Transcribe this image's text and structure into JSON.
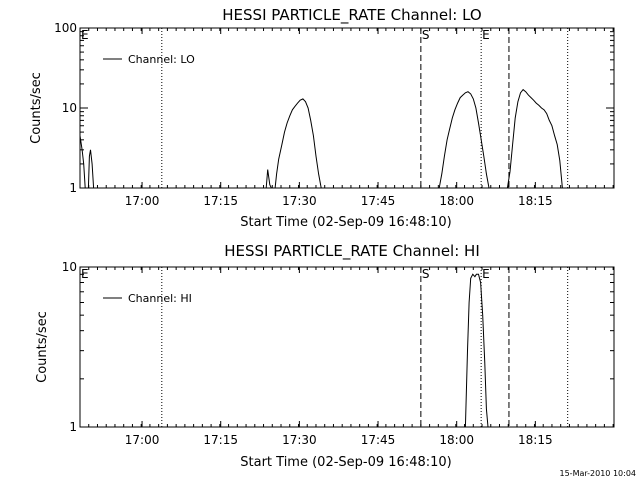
{
  "chart_data": [
    {
      "type": "line",
      "title": "HESSI PARTICLE_RATE Channel: LO",
      "xlabel": "Start Time (02-Sep-09 16:48:10)",
      "ylabel": "Counts/sec",
      "yscale": "log",
      "ylim": [
        1,
        100
      ],
      "xlim_minutes": [
        0,
        101.833
      ],
      "x_ticks": [
        {
          "t": 11.833,
          "label": "17:00"
        },
        {
          "t": 26.833,
          "label": "17:15"
        },
        {
          "t": 41.833,
          "label": "17:30"
        },
        {
          "t": 56.833,
          "label": "17:45"
        },
        {
          "t": 71.833,
          "label": "18:00"
        },
        {
          "t": 86.833,
          "label": "18:15"
        }
      ],
      "y_ticks": [
        {
          "v": 1,
          "label": "1"
        },
        {
          "v": 10,
          "label": "10"
        },
        {
          "v": 100,
          "label": "100"
        }
      ],
      "legend": "Channel: LO",
      "legend_position": "top-left",
      "markers": [
        {
          "t": 0.0,
          "style": "dotted",
          "label": "E"
        },
        {
          "t": 15.6,
          "style": "dotted",
          "label": ""
        },
        {
          "t": 65.0,
          "style": "dashed",
          "label": "S"
        },
        {
          "t": 76.5,
          "style": "dotted",
          "label": "E"
        },
        {
          "t": 81.8,
          "style": "dashed",
          "label": ""
        },
        {
          "t": 93.0,
          "style": "dotted",
          "label": ""
        }
      ],
      "series": [
        {
          "name": "Channel: LO",
          "points": [
            [
              0.0,
              4.5
            ],
            [
              0.4,
              3.0
            ],
            [
              0.7,
              2.0
            ],
            [
              1.0,
              1.0
            ],
            [
              1.6,
              1.0
            ],
            [
              1.8,
              2.5
            ],
            [
              2.0,
              3.0
            ],
            [
              2.3,
              2.0
            ],
            [
              2.6,
              1.0
            ],
            [
              35.5,
              1.0
            ],
            [
              35.8,
              1.7
            ],
            [
              36.2,
              1.1
            ],
            [
              36.5,
              1.0
            ],
            [
              37.2,
              1.0
            ],
            [
              37.5,
              1.5
            ],
            [
              37.9,
              2.3
            ],
            [
              38.5,
              3.5
            ],
            [
              39.0,
              5.0
            ],
            [
              39.5,
              6.5
            ],
            [
              40.0,
              8.0
            ],
            [
              40.5,
              9.5
            ],
            [
              41.0,
              10.5
            ],
            [
              41.5,
              11.5
            ],
            [
              42.0,
              12.5
            ],
            [
              42.5,
              13.0
            ],
            [
              43.0,
              12.0
            ],
            [
              43.5,
              10.0
            ],
            [
              44.0,
              7.0
            ],
            [
              44.5,
              4.5
            ],
            [
              45.0,
              2.5
            ],
            [
              45.5,
              1.5
            ],
            [
              46.0,
              1.0
            ],
            [
              68.5,
              1.0
            ],
            [
              69.0,
              1.5
            ],
            [
              69.5,
              2.5
            ],
            [
              70.0,
              4.0
            ],
            [
              70.5,
              5.5
            ],
            [
              71.0,
              7.5
            ],
            [
              71.5,
              9.5
            ],
            [
              72.0,
              11.5
            ],
            [
              72.5,
              13.5
            ],
            [
              73.0,
              14.5
            ],
            [
              73.5,
              15.5
            ],
            [
              74.0,
              16.0
            ],
            [
              74.5,
              15.0
            ],
            [
              75.0,
              13.0
            ],
            [
              75.5,
              10.0
            ],
            [
              76.0,
              6.5
            ],
            [
              76.5,
              4.0
            ],
            [
              77.0,
              2.5
            ],
            [
              77.5,
              1.5
            ],
            [
              78.0,
              1.0
            ],
            [
              81.5,
              1.0
            ],
            [
              82.0,
              1.6
            ],
            [
              82.5,
              3.5
            ],
            [
              83.0,
              7.5
            ],
            [
              83.5,
              12.0
            ],
            [
              84.0,
              15.5
            ],
            [
              84.5,
              17.0
            ],
            [
              85.0,
              16.0
            ],
            [
              85.5,
              14.5
            ],
            [
              86.0,
              13.5
            ],
            [
              86.5,
              12.5
            ],
            [
              87.0,
              11.5
            ],
            [
              87.5,
              10.8
            ],
            [
              88.0,
              10.0
            ],
            [
              88.5,
              9.5
            ],
            [
              89.0,
              8.5
            ],
            [
              89.5,
              7.0
            ],
            [
              90.0,
              6.0
            ],
            [
              90.5,
              4.5
            ],
            [
              91.0,
              3.5
            ],
            [
              91.5,
              2.2
            ],
            [
              92.0,
              1.0
            ],
            [
              101.833,
              1.0
            ]
          ]
        }
      ]
    },
    {
      "type": "line",
      "title": "HESSI PARTICLE_RATE Channel: HI",
      "xlabel": "Start Time (02-Sep-09 16:48:10)",
      "ylabel": "Counts/sec",
      "yscale": "log",
      "ylim": [
        1,
        10
      ],
      "xlim_minutes": [
        0,
        101.833
      ],
      "x_ticks": [
        {
          "t": 11.833,
          "label": "17:00"
        },
        {
          "t": 26.833,
          "label": "17:15"
        },
        {
          "t": 41.833,
          "label": "17:30"
        },
        {
          "t": 56.833,
          "label": "17:45"
        },
        {
          "t": 71.833,
          "label": "18:00"
        },
        {
          "t": 86.833,
          "label": "18:15"
        }
      ],
      "y_ticks": [
        {
          "v": 1,
          "label": "1"
        },
        {
          "v": 10,
          "label": "10"
        }
      ],
      "legend": "Channel: HI",
      "legend_position": "top-left",
      "markers": [
        {
          "t": 0.0,
          "style": "dotted",
          "label": "E"
        },
        {
          "t": 15.6,
          "style": "dotted",
          "label": ""
        },
        {
          "t": 65.0,
          "style": "dashed",
          "label": "S"
        },
        {
          "t": 76.5,
          "style": "dotted",
          "label": "E"
        },
        {
          "t": 81.8,
          "style": "dashed",
          "label": ""
        },
        {
          "t": 93.0,
          "style": "dotted",
          "label": ""
        }
      ],
      "series": [
        {
          "name": "Channel: HI",
          "points": [
            [
              0.0,
              1.0
            ],
            [
              73.5,
              1.0
            ],
            [
              73.9,
              3.0
            ],
            [
              74.2,
              6.0
            ],
            [
              74.5,
              8.5
            ],
            [
              74.9,
              9.0
            ],
            [
              75.3,
              8.7
            ],
            [
              75.6,
              9.0
            ],
            [
              76.0,
              9.0
            ],
            [
              76.4,
              8.0
            ],
            [
              76.8,
              5.0
            ],
            [
              77.2,
              2.5
            ],
            [
              77.5,
              1.3
            ],
            [
              77.8,
              1.0
            ],
            [
              101.833,
              1.0
            ]
          ]
        }
      ]
    }
  ],
  "timestamp": "15-Mar-2010 10:04"
}
